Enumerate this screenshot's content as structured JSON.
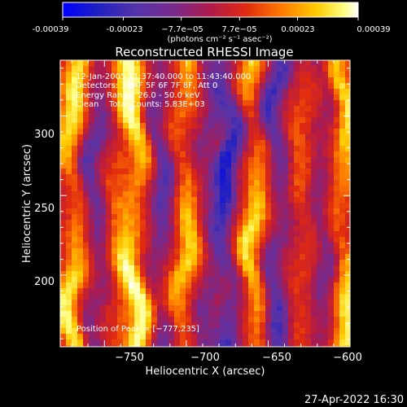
{
  "colorbar": {
    "tick_labels": [
      "-0.00039",
      "-0.00023",
      "−7.7e−05",
      "7.7e−05",
      "0.00023",
      "0.00039"
    ],
    "tick_values": [
      -0.00039,
      -0.00023,
      -7.7e-05,
      7.7e-05,
      0.00023,
      0.00039
    ],
    "range": [
      -0.00039,
      0.00039
    ],
    "unit_label": "(photons cm⁻² s⁻¹ asec⁻²)",
    "colors": [
      "#0000ff",
      "#2020c0",
      "#5533aa",
      "#7a2a8a",
      "#b01a4a",
      "#e02a10",
      "#ff7a00",
      "#ffcc00",
      "#ffff80",
      "#ffffff"
    ]
  },
  "chart_data": {
    "type": "heatmap",
    "title": "Reconstructed RHESSI Image",
    "xlabel": "Heliocentric X (arcsec)",
    "ylabel": "Heliocentric Y (arcsec)",
    "x_ticks": [
      -750,
      -700,
      -650,
      -600
    ],
    "x_tick_labels": [
      "−750",
      "−700",
      "−650",
      "−600"
    ],
    "y_ticks": [
      200,
      250,
      300
    ],
    "y_tick_labels": [
      "200",
      "250",
      "300"
    ],
    "xlim": [
      -777,
      -600
    ],
    "ylim": [
      155,
      335
    ],
    "grid": false,
    "stripes": [
      {
        "x": -770,
        "value": 0.00028
      },
      {
        "x": -757,
        "value": -0.0002
      },
      {
        "x": -742,
        "value": 0.00012
      },
      {
        "x": -733,
        "value": 0.0003
      },
      {
        "x": -718,
        "value": -0.00022
      },
      {
        "x": -703,
        "value": 0.00022
      },
      {
        "x": -689,
        "value": -0.00012
      },
      {
        "x": -677,
        "value": -0.0003
      },
      {
        "x": -660,
        "value": 0.00025
      },
      {
        "x": -646,
        "value": -0.00024
      },
      {
        "x": -630,
        "value": 0.0001
      },
      {
        "x": -619,
        "value": -0.00015
      },
      {
        "x": -606,
        "value": 0.00026
      }
    ],
    "peak": {
      "x": -777,
      "y": 235
    }
  },
  "annotations": {
    "time": "12-Jan-2005 11:37:40.000 to 11:43:40.000",
    "detectors": "Detectors: 3F 4F 5F 6F 7F 8F, Att 0",
    "energy": "Energy Range: 26.0 - 50.0 keV",
    "method": "Clean    Total Counts: 5.83E+03",
    "peak": "Position of Peak = [−777,235]"
  },
  "footer": {
    "timestamp": "27-Apr-2022 16:30"
  }
}
